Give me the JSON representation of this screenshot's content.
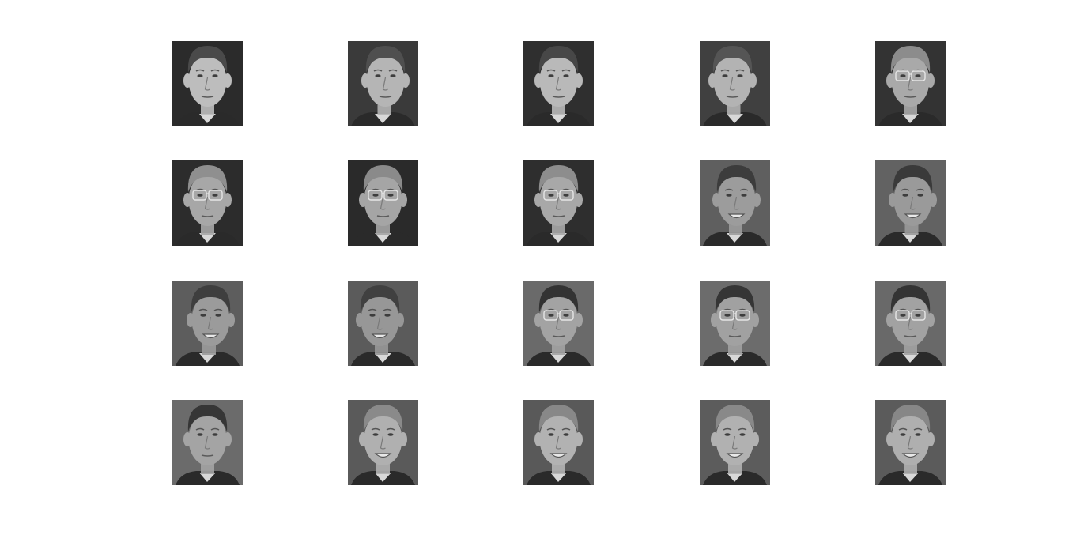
{
  "figure": {
    "background": "#ffffff",
    "grid": {
      "rows": 4,
      "columns": 5
    },
    "tiles": [
      {
        "subject": "young-man-short-hair",
        "bg": "#2b2b2b",
        "skin": "#bdbdbd",
        "hair": "#4a4a4a",
        "glasses": false,
        "smile": false,
        "turn": 0
      },
      {
        "subject": "young-man-short-hair",
        "bg": "#3a3a3a",
        "skin": "#b5b5b5",
        "hair": "#4f4f4f",
        "glasses": false,
        "smile": false,
        "turn": 3
      },
      {
        "subject": "young-man-short-hair",
        "bg": "#2f2f2f",
        "skin": "#b9b9b9",
        "hair": "#474747",
        "glasses": false,
        "smile": false,
        "turn": 0
      },
      {
        "subject": "young-man-short-hair",
        "bg": "#404040",
        "skin": "#b3b3b3",
        "hair": "#555555",
        "glasses": false,
        "smile": false,
        "turn": -3
      },
      {
        "subject": "man-grey-hair-glasses",
        "bg": "#333333",
        "skin": "#a9a9a9",
        "hair": "#8c8c8c",
        "glasses": true,
        "smile": false,
        "turn": 0
      },
      {
        "subject": "man-grey-hair-glasses",
        "bg": "#2c2c2c",
        "skin": "#a7a7a7",
        "hair": "#8f8f8f",
        "glasses": true,
        "smile": false,
        "turn": 0
      },
      {
        "subject": "man-grey-hair-glasses",
        "bg": "#2a2a2a",
        "skin": "#a5a5a5",
        "hair": "#8a8a8a",
        "glasses": true,
        "smile": false,
        "turn": 0
      },
      {
        "subject": "man-grey-hair-glasses",
        "bg": "#2e2e2e",
        "skin": "#a8a8a8",
        "hair": "#8d8d8d",
        "glasses": true,
        "smile": false,
        "turn": 0
      },
      {
        "subject": "man-dark-hair-smiling",
        "bg": "#5f5f5f",
        "skin": "#9c9c9c",
        "hair": "#3c3c3c",
        "glasses": false,
        "smile": true,
        "turn": 2
      },
      {
        "subject": "man-dark-hair-smiling",
        "bg": "#626262",
        "skin": "#9a9a9a",
        "hair": "#3a3a3a",
        "glasses": false,
        "smile": true,
        "turn": 3
      },
      {
        "subject": "man-dark-hair-smiling",
        "bg": "#5d5d5d",
        "skin": "#9b9b9b",
        "hair": "#3e3e3e",
        "glasses": false,
        "smile": true,
        "turn": 4
      },
      {
        "subject": "man-dark-hair-smiling",
        "bg": "#5b5b5b",
        "skin": "#979797",
        "hair": "#404040",
        "glasses": false,
        "smile": true,
        "turn": -4
      },
      {
        "subject": "man-dark-hair-glasses",
        "bg": "#6a6a6a",
        "skin": "#a3a3a3",
        "hair": "#333333",
        "glasses": true,
        "smile": false,
        "turn": 0
      },
      {
        "subject": "man-dark-hair-glasses",
        "bg": "#6c6c6c",
        "skin": "#a1a1a1",
        "hair": "#353535",
        "glasses": true,
        "smile": false,
        "turn": 0
      },
      {
        "subject": "man-dark-hair-glasses",
        "bg": "#696969",
        "skin": "#a2a2a2",
        "hair": "#343434",
        "glasses": true,
        "smile": false,
        "turn": 0
      },
      {
        "subject": "man-dark-hair-glasses",
        "bg": "#6b6b6b",
        "skin": "#a4a4a4",
        "hair": "#363636",
        "glasses": false,
        "smile": false,
        "turn": 0
      },
      {
        "subject": "man-blond-smiling",
        "bg": "#5a5a5a",
        "skin": "#b0b0b0",
        "hair": "#8a8a8a",
        "glasses": false,
        "smile": true,
        "turn": 0
      },
      {
        "subject": "man-blond-smiling",
        "bg": "#595959",
        "skin": "#b2b2b2",
        "hair": "#888888",
        "glasses": false,
        "smile": true,
        "turn": 0
      },
      {
        "subject": "man-blond-smiling",
        "bg": "#5c5c5c",
        "skin": "#b1b1b1",
        "hair": "#898989",
        "glasses": false,
        "smile": true,
        "turn": 0
      },
      {
        "subject": "man-blond-smiling",
        "bg": "#5b5b5b",
        "skin": "#afafaf",
        "hair": "#878787",
        "glasses": false,
        "smile": true,
        "turn": 0
      }
    ]
  }
}
